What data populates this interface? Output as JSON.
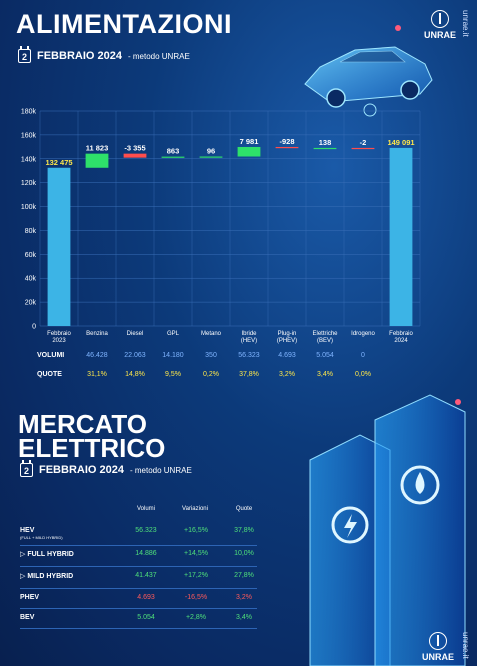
{
  "header": {
    "title": "ALIMENTAZIONI",
    "cal_day": "2",
    "subtitle": "FEBBRAIO 2024",
    "method": "- metodo UNRAE",
    "logo_text": "UNRAE",
    "site": "unrae.it"
  },
  "chart_data": {
    "type": "waterfall",
    "y_ticks": [
      "0",
      "20k",
      "40k",
      "60k",
      "80k",
      "100k",
      "120k",
      "140k",
      "160k",
      "180k"
    ],
    "ylim": [
      0,
      180000
    ],
    "categories": [
      "Febbraio 2023",
      "Benzina",
      "Diesel",
      "GPL",
      "Metano",
      "Ibride (HEV)",
      "Plug-in (PHEV)",
      "Elettriche (BEV)",
      "Idrogeno",
      "Febbraio 2024"
    ],
    "category_lines": [
      [
        "Febbraio",
        "2023"
      ],
      [
        "Benzina"
      ],
      [
        "Diesel"
      ],
      [
        "GPL"
      ],
      [
        "Metano"
      ],
      [
        "Ibride",
        "(HEV)"
      ],
      [
        "Plug-in",
        "(PHEV)"
      ],
      [
        "Elettriche",
        "(BEV)"
      ],
      [
        "Idrogeno"
      ],
      [
        "Febbraio",
        "2024"
      ]
    ],
    "deltas": [
      132475,
      11823,
      -3355,
      863,
      96,
      7981,
      -928,
      138,
      -2,
      149091
    ],
    "data_labels": [
      "132 475",
      "11 823",
      "-3 355",
      "863",
      "96",
      "7 981",
      "-928",
      "138",
      "-2",
      "149 091"
    ],
    "kinds": [
      "total",
      "delta",
      "delta",
      "delta",
      "delta",
      "delta",
      "delta",
      "delta",
      "delta",
      "total"
    ],
    "colors": {
      "total": "#3cb4e6",
      "up": "#2ee06a",
      "down": "#ff4d4d"
    },
    "grid": true
  },
  "summary_table": {
    "volumi_label": "VOLUMI",
    "quote_label": "QUOTE",
    "volumi": [
      "46.428",
      "22.063",
      "14.180",
      "350",
      "56.323",
      "4.693",
      "5.054",
      "0"
    ],
    "quote": [
      "31,1%",
      "14,8%",
      "9,5%",
      "0,2%",
      "37,8%",
      "3,2%",
      "3,4%",
      "0,0%"
    ]
  },
  "mercato": {
    "title_line1": "MERCATO",
    "title_line2": "ELETTRICO",
    "cal_day": "2",
    "subtitle": "FEBBRAIO 2024",
    "method": "- metodo UNRAE",
    "col_volumi": "Volumi",
    "col_variazioni": "Variazioni",
    "col_quote": "Quote",
    "rows": [
      {
        "name": "HEV",
        "sub": "(FULL + MILD HYBRID)",
        "volumi": "56.323",
        "variazioni": "+16,5%",
        "quote": "37,8%",
        "tone": "green"
      },
      {
        "name": "▷ FULL HYBRID",
        "sub": "",
        "volumi": "14.886",
        "variazioni": "+14,5%",
        "quote": "10,0%",
        "tone": "green"
      },
      {
        "name": "▷ MILD HYBRID",
        "sub": "",
        "volumi": "41.437",
        "variazioni": "+17,2%",
        "quote": "27,8%",
        "tone": "green"
      },
      {
        "name": "PHEV",
        "sub": "",
        "volumi": "4.693",
        "variazioni": "-16,5%",
        "quote": "3,2%",
        "tone": "red"
      },
      {
        "name": "BEV",
        "sub": "",
        "volumi": "5.054",
        "variazioni": "+2,8%",
        "quote": "3,4%",
        "tone": "green"
      }
    ],
    "logo_text": "UNRAE",
    "site": "unrae.it"
  }
}
